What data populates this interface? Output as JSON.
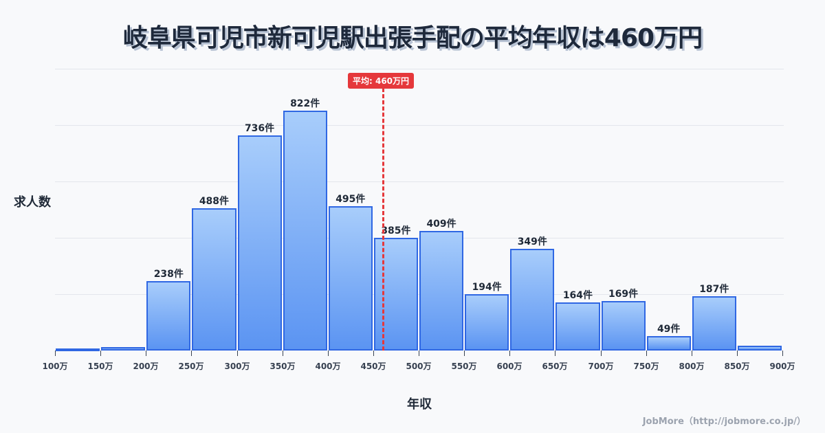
{
  "title": "岐阜県可児市新可児駅出張手配の平均年収は460万円",
  "y_axis_label": "求人数",
  "x_axis_label": "年収",
  "credit": "JobMore（http://jobmore.co.jp/）",
  "mean_badge": "平均: 460万円",
  "colors": {
    "bar_border": "#2f67e3",
    "bar_top": "#a8cdfb",
    "bar_bottom": "#5b94f2",
    "mean_line": "#e5383b"
  },
  "chart_data": {
    "type": "bar",
    "title": "岐阜県可児市新可児駅出張手配の平均年収は460万円",
    "xlabel": "年収",
    "ylabel": "求人数",
    "bin_edges": [
      "100万",
      "150万",
      "200万",
      "250万",
      "300万",
      "350万",
      "400万",
      "450万",
      "500万",
      "550万",
      "600万",
      "650万",
      "700万",
      "750万",
      "800万",
      "850万",
      "900万"
    ],
    "categories": [
      "100-150万",
      "150-200万",
      "200-250万",
      "250-300万",
      "300-350万",
      "350-400万",
      "400-450万",
      "450-500万",
      "500-550万",
      "550-600万",
      "600-650万",
      "650-700万",
      "700-750万",
      "750-800万",
      "800-850万",
      "850-900万"
    ],
    "values": [
      3,
      12,
      238,
      488,
      736,
      822,
      495,
      385,
      409,
      194,
      349,
      164,
      169,
      49,
      187,
      17
    ],
    "labels": [
      "",
      "",
      "238件",
      "488件",
      "736件",
      "822件",
      "495件",
      "385件",
      "409件",
      "194件",
      "349件",
      "164件",
      "169件",
      "49件",
      "187件",
      ""
    ],
    "mean": 460,
    "mean_label": "平均: 460万円",
    "grid": true,
    "ylim": [
      0,
      965
    ]
  }
}
